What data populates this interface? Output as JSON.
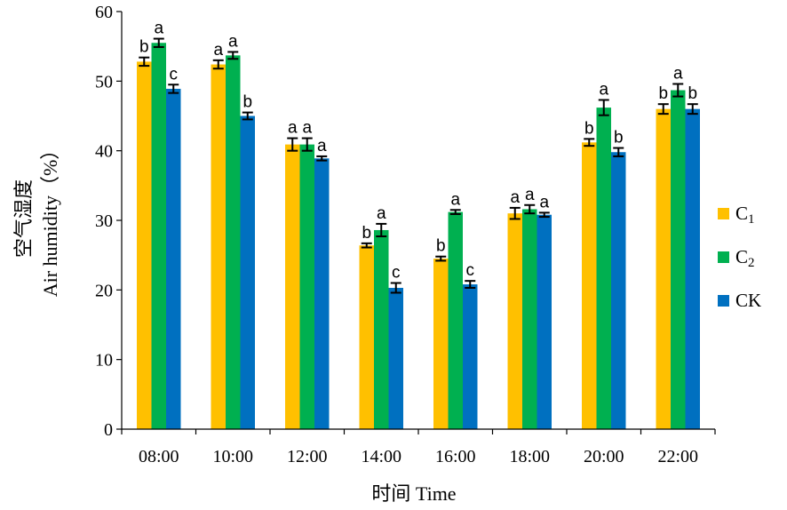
{
  "chart_data": {
    "type": "bar",
    "title": "",
    "xlabel": "时间 Time",
    "ylabel_cn": "空气湿度",
    "ylabel_en": "Air humidity（%）",
    "ylim": [
      0,
      60
    ],
    "yticks": [
      "0",
      "10",
      "20",
      "30",
      "40",
      "50",
      "60"
    ],
    "categories": [
      "08:00",
      "10:00",
      "12:00",
      "14:00",
      "16:00",
      "18:00",
      "20:00",
      "22:00"
    ],
    "legend_position": "right",
    "series": [
      {
        "name": "C1",
        "label_main": "C",
        "label_sub": "1",
        "color": "#FFC000",
        "values": [
          52.8,
          52.4,
          40.9,
          26.4,
          24.5,
          31.0,
          41.2,
          46.0
        ],
        "errors": [
          0.6,
          0.6,
          0.9,
          0.3,
          0.3,
          0.8,
          0.5,
          0.7
        ],
        "sig": [
          "b",
          "a",
          "a",
          "b",
          "b",
          "a",
          "b",
          "b"
        ]
      },
      {
        "name": "C2",
        "label_main": "C",
        "label_sub": "2",
        "color": "#00B050",
        "values": [
          55.5,
          53.7,
          40.9,
          28.6,
          31.2,
          31.6,
          46.2,
          48.7
        ],
        "errors": [
          0.6,
          0.5,
          0.9,
          0.9,
          0.3,
          0.6,
          1.1,
          0.9
        ],
        "sig": [
          "a",
          "a",
          "a",
          "a",
          "a",
          "a",
          "a",
          "a"
        ]
      },
      {
        "name": "CK",
        "label_main": "CK",
        "label_sub": "",
        "color": "#0070C0",
        "values": [
          48.9,
          45.0,
          38.9,
          20.3,
          20.8,
          30.8,
          39.8,
          46.0
        ],
        "errors": [
          0.6,
          0.5,
          0.3,
          0.7,
          0.5,
          0.3,
          0.6,
          0.7
        ],
        "sig": [
          "c",
          "b",
          "a",
          "c",
          "c",
          "a",
          "b",
          "b"
        ]
      }
    ]
  }
}
